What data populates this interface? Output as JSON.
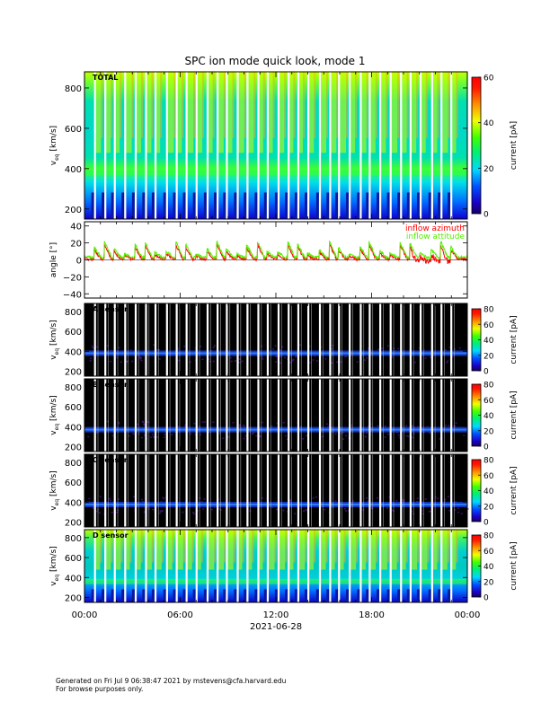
{
  "title": "SPC ion mode quick look, mode 1",
  "footer": {
    "line1": "Generated on Fri Jul  9 06:38:47 2021 by mstevens@cfa.harvard.edu",
    "line2": "For browse purposes only."
  },
  "colors": {
    "azimuth": "#ff0000",
    "attitude": "#55ee00",
    "background": "#000000"
  },
  "chart_data": [
    {
      "type": "heatmap",
      "panel_label": "TOTAL",
      "ylabel_main": "v",
      "ylabel_sub": "eq",
      "ylabel_unit": " [km/s]",
      "yticks": [
        "200",
        "400",
        "600",
        "800"
      ],
      "ylim": [
        150,
        880
      ],
      "colorbar": {
        "label": "current [pA]",
        "ticks": [
          "0",
          "20",
          "40",
          "60"
        ],
        "range": [
          0,
          60
        ]
      },
      "core_speed_kms": 380,
      "background": "filled"
    },
    {
      "type": "line",
      "ylabel": "angle [°]",
      "yticks": [
        "40",
        "20",
        "0",
        "−20",
        "−40"
      ],
      "ylim": [
        -45,
        45
      ],
      "series": [
        {
          "name": "inflow azimuth",
          "color": "#ff0000",
          "baseline_deg": 1
        },
        {
          "name": "inflow attitude",
          "color": "#55ee00",
          "baseline_deg": 3
        }
      ]
    },
    {
      "type": "heatmap",
      "panel_label": "A sensor",
      "ylabel_main": "v",
      "ylabel_sub": "eq",
      "ylabel_unit": " [km/s]",
      "yticks": [
        "200",
        "400",
        "600",
        "800"
      ],
      "ylim": [
        150,
        880
      ],
      "colorbar": {
        "label": "current [pA]",
        "ticks": [
          "0",
          "20",
          "40",
          "60",
          "80"
        ],
        "range": [
          0,
          80
        ]
      },
      "core_speed_kms": 380,
      "background": "black"
    },
    {
      "type": "heatmap",
      "panel_label": "B sensor",
      "ylabel_main": "v",
      "ylabel_sub": "eq",
      "ylabel_unit": " [km/s]",
      "yticks": [
        "200",
        "400",
        "600",
        "800"
      ],
      "ylim": [
        150,
        880
      ],
      "colorbar": {
        "label": "current [pA]",
        "ticks": [
          "0",
          "20",
          "40",
          "60",
          "80"
        ],
        "range": [
          0,
          80
        ]
      },
      "core_speed_kms": 370,
      "background": "black"
    },
    {
      "type": "heatmap",
      "panel_label": "C sensor",
      "ylabel_main": "v",
      "ylabel_sub": "eq",
      "ylabel_unit": " [km/s]",
      "yticks": [
        "200",
        "400",
        "600",
        "800"
      ],
      "ylim": [
        150,
        880
      ],
      "colorbar": {
        "label": "current [pA]",
        "ticks": [
          "0",
          "20",
          "40",
          "60",
          "80"
        ],
        "range": [
          0,
          80
        ]
      },
      "core_speed_kms": 375,
      "background": "black"
    },
    {
      "type": "heatmap",
      "panel_label": "D sensor",
      "ylabel_main": "v",
      "ylabel_sub": "eq",
      "ylabel_unit": " [km/s]",
      "yticks": [
        "200",
        "400",
        "600",
        "800"
      ],
      "ylim": [
        150,
        880
      ],
      "colorbar": {
        "label": "current [pA]",
        "ticks": [
          "0",
          "20",
          "40",
          "60",
          "80"
        ],
        "range": [
          0,
          80
        ]
      },
      "core_speed_kms": 360,
      "background": "filled"
    }
  ],
  "xaxis": {
    "ticks": [
      "00:00",
      "06:00",
      "12:00",
      "18:00",
      "00:00"
    ],
    "date_label": "2021-06-28",
    "range_hours": [
      0,
      24
    ],
    "gap_count": 36
  }
}
